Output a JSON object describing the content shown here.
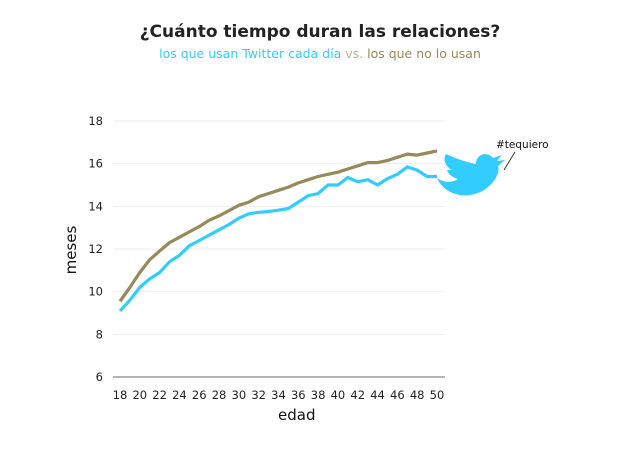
{
  "chart_data": {
    "type": "line",
    "title": "¿Cuánto tiempo duran las relaciones?",
    "subtitle": {
      "part1": "los que usan Twitter cada día",
      "vs": " vs. ",
      "part2": "los que no lo usan"
    },
    "xlabel": "edad",
    "ylabel": "meses",
    "xlim": [
      18,
      50
    ],
    "ylim": [
      6,
      18
    ],
    "xticks": [
      18,
      20,
      22,
      24,
      26,
      28,
      30,
      32,
      34,
      36,
      38,
      40,
      42,
      44,
      46,
      48,
      50
    ],
    "yticks": [
      6,
      8,
      10,
      12,
      14,
      16,
      18
    ],
    "grid": true,
    "x": [
      18,
      19,
      20,
      21,
      22,
      23,
      24,
      25,
      26,
      27,
      28,
      29,
      30,
      31,
      32,
      33,
      34,
      35,
      36,
      37,
      38,
      39,
      40,
      41,
      42,
      43,
      44,
      45,
      46,
      47,
      48,
      49,
      50
    ],
    "series": [
      {
        "name": "los que usan Twitter cada día",
        "color": "#33ccff",
        "values": [
          9.1,
          9.6,
          10.2,
          10.6,
          10.9,
          11.4,
          11.7,
          12.15,
          12.4,
          12.65,
          12.9,
          13.15,
          13.45,
          13.65,
          13.72,
          13.76,
          13.82,
          13.9,
          14.2,
          14.5,
          14.6,
          15.0,
          15.0,
          15.35,
          15.15,
          15.25,
          15.0,
          15.3,
          15.5,
          15.85,
          15.7,
          15.4,
          15.4
        ]
      },
      {
        "name": "los que no lo usan",
        "color": "#948a5a",
        "values": [
          9.55,
          10.2,
          10.9,
          11.5,
          11.9,
          12.3,
          12.55,
          12.8,
          13.05,
          13.35,
          13.55,
          13.8,
          14.05,
          14.2,
          14.45,
          14.6,
          14.75,
          14.9,
          15.1,
          15.25,
          15.4,
          15.5,
          15.6,
          15.75,
          15.9,
          16.05,
          16.05,
          16.15,
          16.3,
          16.45,
          16.4,
          16.5,
          16.6
        ]
      }
    ],
    "annotation": "#tequiero",
    "vs_color": "#b9b39a"
  }
}
